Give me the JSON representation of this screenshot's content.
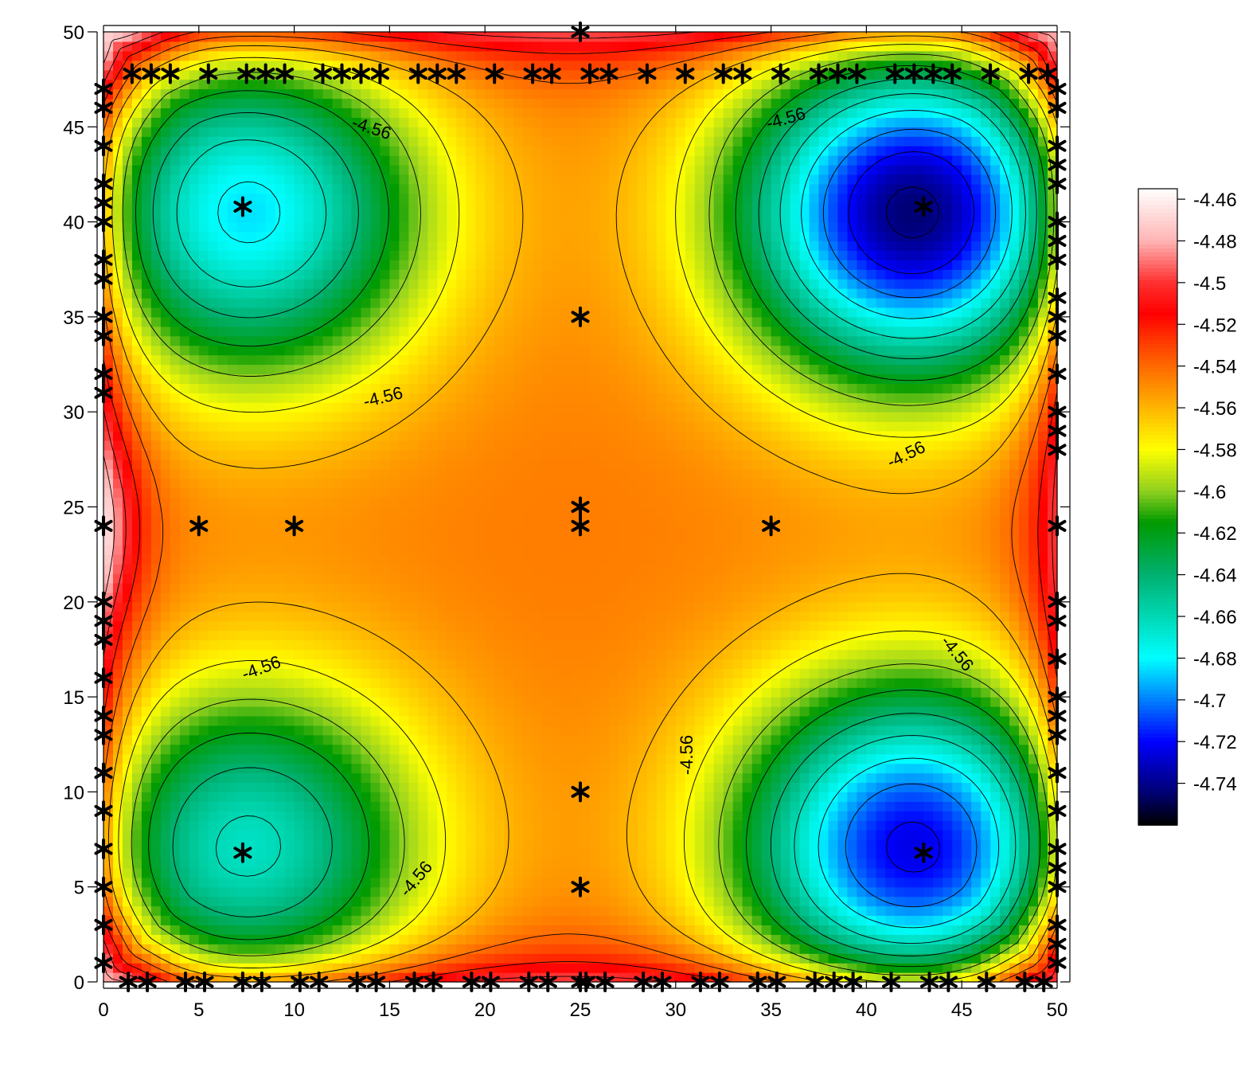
{
  "chart_data": {
    "type": "heatmap",
    "title": "",
    "xlabel": "",
    "ylabel": "",
    "xlim": [
      0,
      50
    ],
    "ylim": [
      0,
      50
    ],
    "x_ticks": [
      "0",
      "5",
      "10",
      "15",
      "20",
      "25",
      "30",
      "35",
      "40",
      "45",
      "50"
    ],
    "y_ticks": [
      "0",
      "5",
      "10",
      "15",
      "20",
      "25",
      "30",
      "35",
      "40",
      "45",
      "50"
    ],
    "colorbar": {
      "min": -4.76,
      "max": -4.455,
      "tick_labels": [
        "-4.46",
        "-4.48",
        "-4.5",
        "-4.52",
        "-4.54",
        "-4.56",
        "-4.58",
        "-4.6",
        "-4.62",
        "-4.64",
        "-4.66",
        "-4.68",
        "-4.7",
        "-4.72",
        "-4.74"
      ],
      "colors": [
        {
          "v": -4.455,
          "c": "#ffffff"
        },
        {
          "v": -4.48,
          "c": "#ffb4b4"
        },
        {
          "v": -4.5,
          "c": "#ff3030"
        },
        {
          "v": -4.515,
          "c": "#ff0000"
        },
        {
          "v": -4.535,
          "c": "#ff5500"
        },
        {
          "v": -4.56,
          "c": "#ffb400"
        },
        {
          "v": -4.58,
          "c": "#ffff00"
        },
        {
          "v": -4.6,
          "c": "#90d020"
        },
        {
          "v": -4.615,
          "c": "#009a00"
        },
        {
          "v": -4.64,
          "c": "#00b070"
        },
        {
          "v": -4.66,
          "c": "#00d8b4"
        },
        {
          "v": -4.68,
          "c": "#00ffff"
        },
        {
          "v": -4.7,
          "c": "#0080ff"
        },
        {
          "v": -4.72,
          "c": "#0000ff"
        },
        {
          "v": -4.745,
          "c": "#000070"
        },
        {
          "v": -4.76,
          "c": "#000000"
        }
      ]
    },
    "contour_label": "-4.56",
    "minima": [
      {
        "x": 7.5,
        "y": 40.5,
        "value": -4.69
      },
      {
        "x": 42.5,
        "y": 40.5,
        "value": -4.75
      },
      {
        "x": 7.5,
        "y": 7.0,
        "value": -4.67
      },
      {
        "x": 42.5,
        "y": 7.0,
        "value": -4.73
      }
    ],
    "sample_points": [
      [
        25,
        50
      ],
      [
        1.5,
        47.8
      ],
      [
        2.5,
        47.8
      ],
      [
        3.5,
        47.8
      ],
      [
        5.5,
        47.8
      ],
      [
        7.5,
        47.8
      ],
      [
        8.5,
        47.8
      ],
      [
        9.5,
        47.8
      ],
      [
        11.5,
        47.8
      ],
      [
        12.5,
        47.8
      ],
      [
        13.5,
        47.8
      ],
      [
        14.5,
        47.8
      ],
      [
        16.5,
        47.8
      ],
      [
        17.5,
        47.8
      ],
      [
        18.5,
        47.8
      ],
      [
        20.5,
        47.8
      ],
      [
        22.5,
        47.8
      ],
      [
        23.5,
        47.8
      ],
      [
        25.5,
        47.8
      ],
      [
        26.5,
        47.8
      ],
      [
        28.5,
        47.8
      ],
      [
        30.5,
        47.8
      ],
      [
        32.5,
        47.8
      ],
      [
        33.5,
        47.8
      ],
      [
        35.5,
        47.8
      ],
      [
        37.5,
        47.8
      ],
      [
        38.5,
        47.8
      ],
      [
        39.5,
        47.8
      ],
      [
        41.5,
        47.8
      ],
      [
        42.5,
        47.8
      ],
      [
        43.5,
        47.8
      ],
      [
        44.5,
        47.8
      ],
      [
        46.5,
        47.8
      ],
      [
        48.5,
        47.8
      ],
      [
        49.5,
        47.8
      ],
      [
        1.3,
        0
      ],
      [
        2.3,
        0
      ],
      [
        4.3,
        0
      ],
      [
        5.3,
        0
      ],
      [
        7.3,
        0
      ],
      [
        8.3,
        0
      ],
      [
        10.3,
        0
      ],
      [
        11.3,
        0
      ],
      [
        13.3,
        0
      ],
      [
        14.3,
        0
      ],
      [
        16.3,
        0
      ],
      [
        17.3,
        0
      ],
      [
        19.3,
        0
      ],
      [
        20.3,
        0
      ],
      [
        22.3,
        0
      ],
      [
        23.3,
        0
      ],
      [
        25,
        0
      ],
      [
        25.3,
        0
      ],
      [
        26.3,
        0
      ],
      [
        28.3,
        0
      ],
      [
        29.3,
        0
      ],
      [
        31.3,
        0
      ],
      [
        32.3,
        0
      ],
      [
        34.3,
        0
      ],
      [
        35.3,
        0
      ],
      [
        37.3,
        0
      ],
      [
        38.3,
        0
      ],
      [
        39.3,
        0
      ],
      [
        41.3,
        0
      ],
      [
        43.3,
        0
      ],
      [
        44.3,
        0
      ],
      [
        46.3,
        0
      ],
      [
        48.3,
        0
      ],
      [
        49.3,
        0
      ],
      [
        0,
        1
      ],
      [
        0,
        3
      ],
      [
        0,
        5
      ],
      [
        0,
        7
      ],
      [
        0,
        9
      ],
      [
        0,
        11
      ],
      [
        0,
        13
      ],
      [
        0,
        14
      ],
      [
        0,
        16
      ],
      [
        0,
        18
      ],
      [
        0,
        19
      ],
      [
        0,
        20
      ],
      [
        0,
        24
      ],
      [
        0,
        31
      ],
      [
        0,
        32
      ],
      [
        0,
        34
      ],
      [
        0,
        35
      ],
      [
        0,
        37
      ],
      [
        0,
        38
      ],
      [
        0,
        40
      ],
      [
        0,
        41
      ],
      [
        0,
        42
      ],
      [
        0,
        44
      ],
      [
        0,
        46
      ],
      [
        0,
        47
      ],
      [
        50,
        1
      ],
      [
        50,
        2
      ],
      [
        50,
        3
      ],
      [
        50,
        5
      ],
      [
        50,
        6
      ],
      [
        50,
        7
      ],
      [
        50,
        9
      ],
      [
        50,
        11
      ],
      [
        50,
        13
      ],
      [
        50,
        14
      ],
      [
        50,
        15
      ],
      [
        50,
        17
      ],
      [
        50,
        19
      ],
      [
        50,
        20
      ],
      [
        50,
        24
      ],
      [
        50,
        28
      ],
      [
        50,
        29
      ],
      [
        50,
        30
      ],
      [
        50,
        32
      ],
      [
        50,
        34
      ],
      [
        50,
        35
      ],
      [
        50,
        36
      ],
      [
        50,
        38
      ],
      [
        50,
        39
      ],
      [
        50,
        40
      ],
      [
        50,
        42
      ],
      [
        50,
        43
      ],
      [
        50,
        44
      ],
      [
        50,
        46
      ],
      [
        50,
        47
      ],
      [
        5,
        24
      ],
      [
        10,
        24
      ],
      [
        35,
        24
      ],
      [
        25,
        24
      ],
      [
        25,
        25
      ],
      [
        25,
        35
      ],
      [
        25,
        10
      ],
      [
        25,
        5
      ],
      [
        7.3,
        6.8
      ],
      [
        7.3,
        40.8
      ],
      [
        43,
        6.8
      ],
      [
        43,
        40.8
      ]
    ]
  }
}
